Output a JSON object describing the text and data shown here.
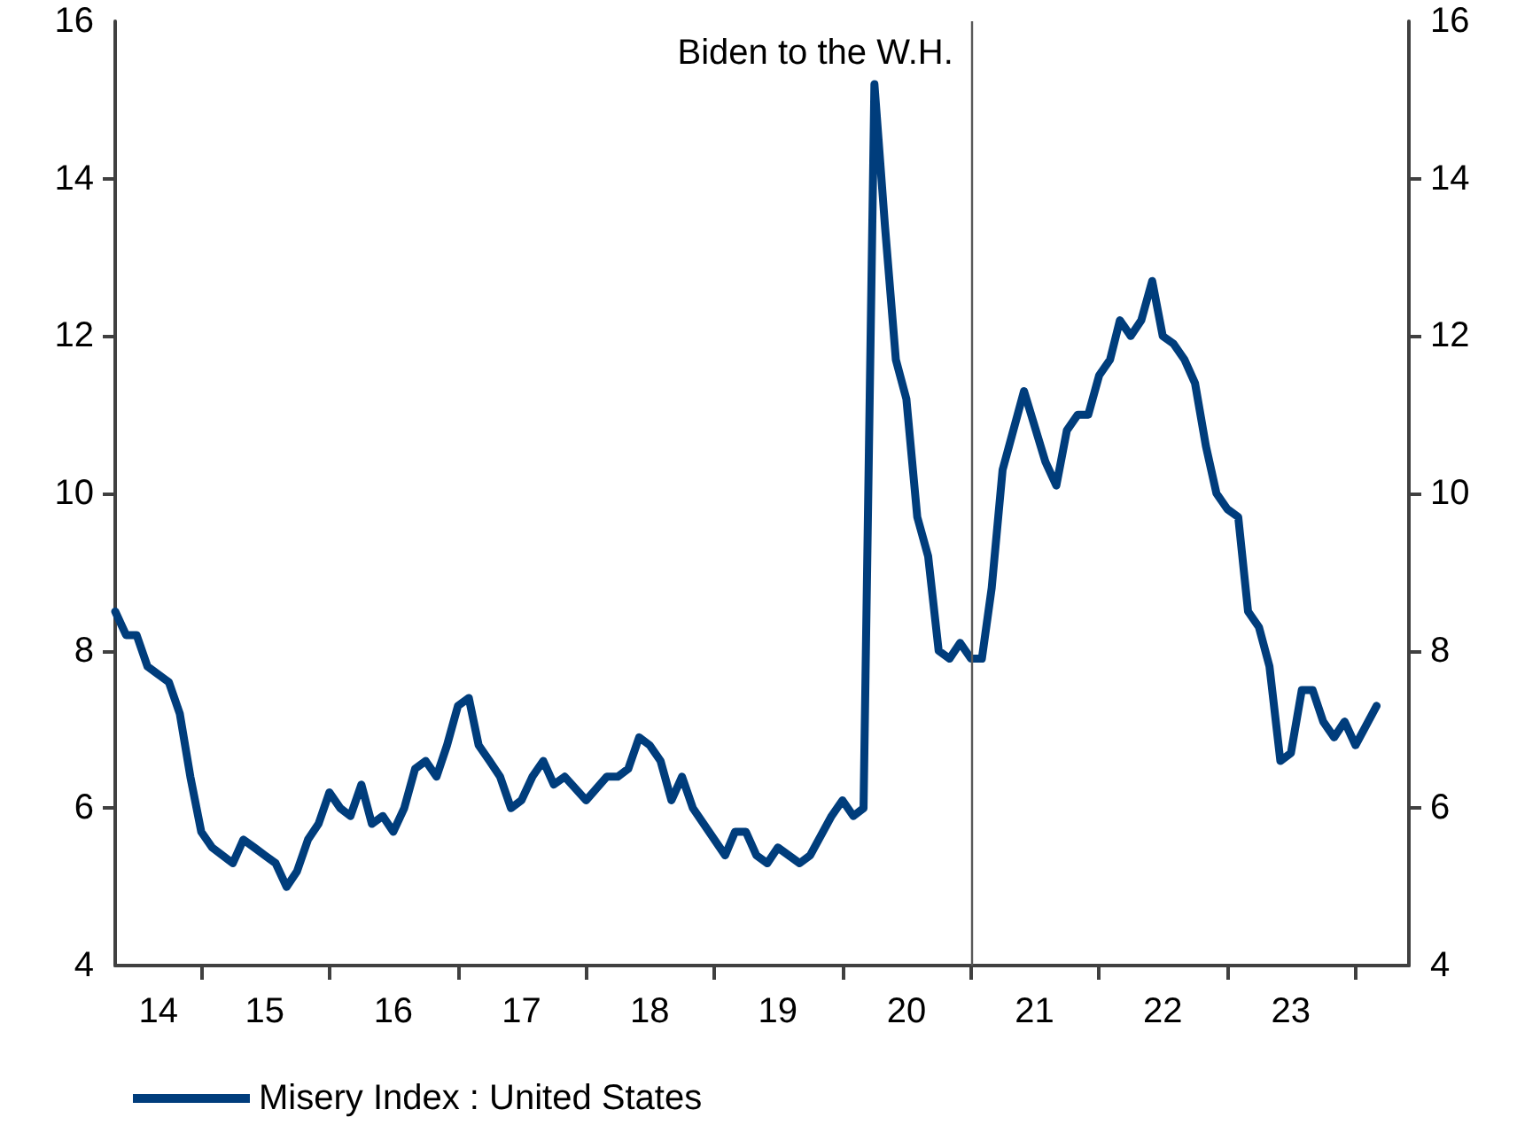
{
  "chart_data": {
    "type": "line",
    "x": [
      "2014-05",
      "2014-06",
      "2014-07",
      "2014-08",
      "2014-10",
      "2014-11",
      "2014-12",
      "2015-01",
      "2015-02",
      "2015-04",
      "2015-05",
      "2015-06",
      "2015-07",
      "2015-08",
      "2015-09",
      "2015-10",
      "2015-11",
      "2015-12",
      "2016-01",
      "2016-02",
      "2016-03",
      "2016-04",
      "2016-05",
      "2016-06",
      "2016-07",
      "2016-08",
      "2016-09",
      "2016-10",
      "2016-11",
      "2016-12",
      "2017-01",
      "2017-02",
      "2017-03",
      "2017-04",
      "2017-05",
      "2017-06",
      "2017-07",
      "2017-08",
      "2017-09",
      "2017-10",
      "2017-11",
      "2018-01",
      "2018-03",
      "2018-04",
      "2018-05",
      "2018-06",
      "2018-07",
      "2018-08",
      "2018-09",
      "2018-10",
      "2018-11",
      "2019-02",
      "2019-03",
      "2019-04",
      "2019-05",
      "2019-06",
      "2019-07",
      "2019-09",
      "2019-10",
      "2019-12",
      "2020-01",
      "2020-02",
      "2020-03",
      "2020-04",
      "2020-05",
      "2020-06",
      "2020-07",
      "2020-08",
      "2020-09",
      "2020-10",
      "2020-11",
      "2020-12",
      "2021-01",
      "2021-02",
      "2021-03",
      "2021-04",
      "2021-06",
      "2021-08",
      "2021-09",
      "2021-10",
      "2021-11",
      "2021-12",
      "2022-01",
      "2022-02",
      "2022-03",
      "2022-04",
      "2022-05",
      "2022-06",
      "2022-07",
      "2022-08",
      "2022-09",
      "2022-10",
      "2022-11",
      "2022-12",
      "2023-01",
      "2023-02",
      "2023-03",
      "2023-04",
      "2023-05",
      "2023-06",
      "2023-07",
      "2023-08",
      "2023-09",
      "2023-10",
      "2023-11",
      "2023-12",
      "2024-01",
      "2024-03"
    ],
    "series": [
      {
        "name": "Misery Index : United States",
        "color": "#003d7c",
        "values": [
          8.5,
          8.2,
          8.2,
          7.8,
          7.6,
          7.2,
          6.4,
          5.7,
          5.5,
          5.3,
          5.6,
          5.5,
          5.4,
          5.3,
          5.0,
          5.2,
          5.6,
          5.8,
          6.2,
          6.0,
          5.9,
          6.3,
          5.8,
          5.9,
          5.7,
          6.0,
          6.5,
          6.6,
          6.4,
          6.8,
          7.3,
          7.4,
          6.8,
          6.6,
          6.4,
          6.0,
          6.1,
          6.4,
          6.6,
          6.3,
          6.4,
          6.1,
          6.4,
          6.4,
          6.5,
          6.9,
          6.8,
          6.6,
          6.1,
          6.4,
          6.0,
          5.4,
          5.7,
          5.7,
          5.4,
          5.3,
          5.5,
          5.3,
          5.4,
          5.9,
          6.1,
          5.9,
          6.0,
          15.2,
          13.4,
          11.7,
          11.2,
          9.7,
          9.2,
          8.0,
          7.9,
          8.1,
          7.9,
          7.9,
          8.8,
          10.3,
          11.3,
          10.4,
          10.1,
          10.8,
          11.0,
          11.0,
          11.5,
          11.7,
          12.2,
          12.0,
          12.2,
          12.7,
          12.0,
          11.9,
          11.7,
          11.4,
          10.6,
          10.0,
          9.8,
          9.7,
          8.5,
          8.3,
          7.8,
          6.6,
          6.7,
          7.5,
          7.5,
          7.1,
          6.9,
          7.1,
          6.8,
          7.3
        ]
      }
    ],
    "xlim": [
      "2014-05",
      "2024-06"
    ],
    "xticks": [
      {
        "value": "2014-09",
        "label": "14"
      },
      {
        "value": "2015-01",
        "label": null
      },
      {
        "value": "2015-07",
        "label": "15"
      },
      {
        "value": "2016-01",
        "label": null
      },
      {
        "value": "2016-07",
        "label": "16"
      },
      {
        "value": "2017-01",
        "label": null
      },
      {
        "value": "2017-07",
        "label": "17"
      },
      {
        "value": "2018-01",
        "label": null
      },
      {
        "value": "2018-07",
        "label": "18"
      },
      {
        "value": "2019-01",
        "label": null
      },
      {
        "value": "2019-07",
        "label": "19"
      },
      {
        "value": "2020-01",
        "label": null
      },
      {
        "value": "2020-07",
        "label": "20"
      },
      {
        "value": "2021-01",
        "label": null
      },
      {
        "value": "2021-07",
        "label": "21"
      },
      {
        "value": "2022-01",
        "label": null
      },
      {
        "value": "2022-07",
        "label": "22"
      },
      {
        "value": "2023-01",
        "label": null
      },
      {
        "value": "2023-07",
        "label": "23"
      },
      {
        "value": "2024-01",
        "label": null
      }
    ],
    "ylim": [
      4,
      16
    ],
    "yticks": [
      4,
      6,
      8,
      10,
      12,
      14,
      16
    ],
    "y2lim": [
      4,
      16
    ],
    "y2ticks": [
      4,
      6,
      8,
      10,
      12,
      14,
      16
    ],
    "ref_lines": [
      {
        "axis": "x",
        "value": "2021-01",
        "label": "Biden to the W.H.",
        "color": "#595959"
      }
    ],
    "grid": false,
    "legend": "bottom left",
    "marker": "none",
    "line_style": "solid"
  }
}
